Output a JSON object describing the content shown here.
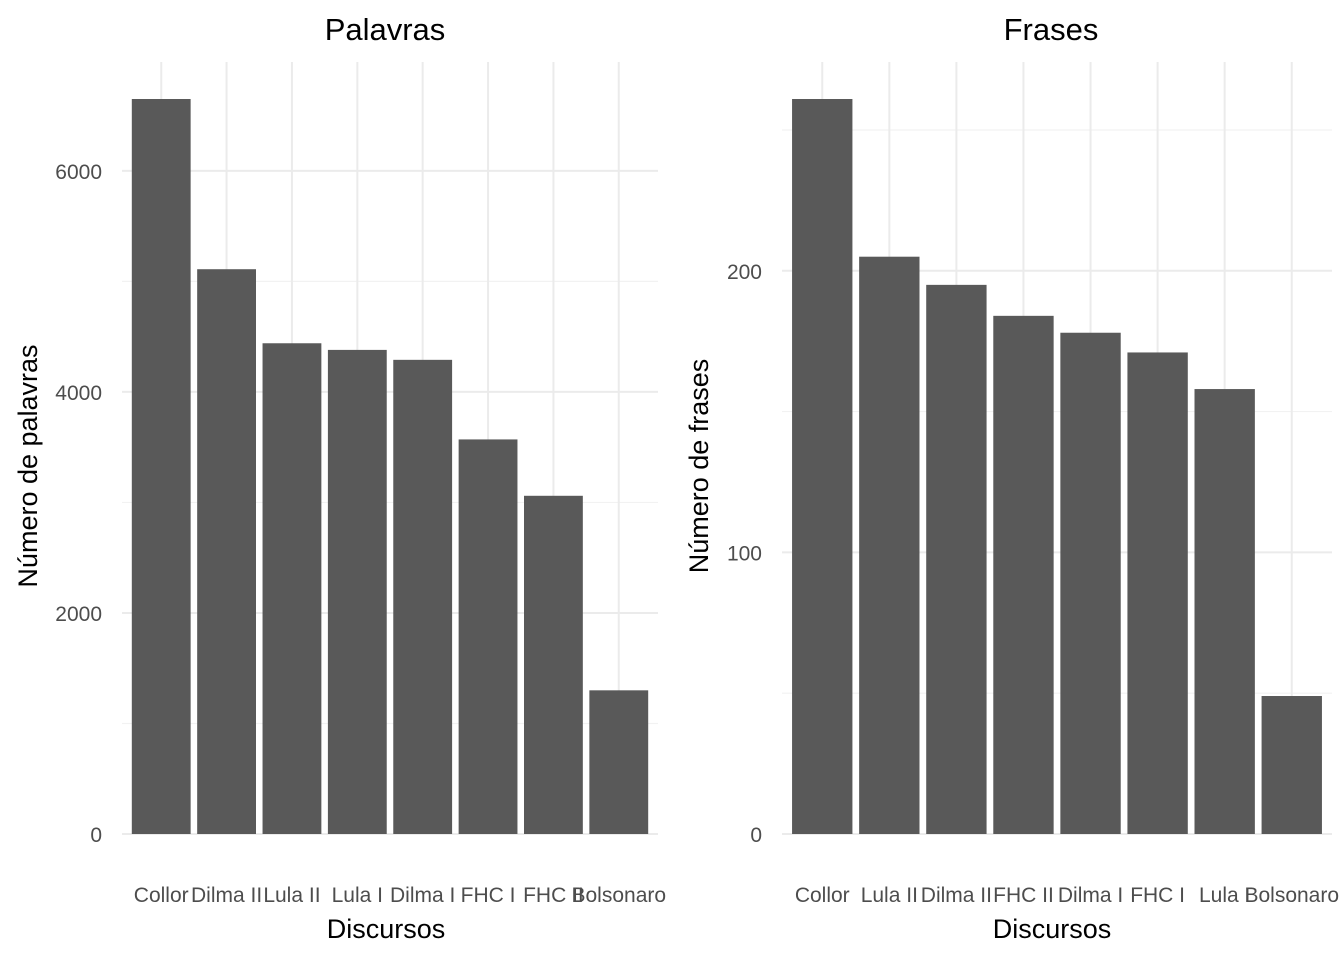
{
  "chart_data": [
    {
      "type": "bar",
      "title": "Palavras",
      "xlabel": "Discursos",
      "ylabel": "Número de palavras",
      "categories": [
        "Collor",
        "Dilma II",
        "Lula II",
        "Lula I",
        "Dilma I",
        "FHC I",
        "FHC II",
        "Bolsonaro"
      ],
      "values": [
        6650,
        5110,
        4440,
        4380,
        4290,
        3570,
        3060,
        1300
      ],
      "ylim": [
        0,
        6650
      ],
      "y_ticks": [
        0,
        2000,
        4000,
        6000
      ],
      "y_tick_labels": [
        "0",
        "2000",
        "4000",
        "6000"
      ],
      "grid": true,
      "bar_color": "#595959"
    },
    {
      "type": "bar",
      "title": "Frases",
      "xlabel": "Discursos",
      "ylabel": "Número de frases",
      "categories": [
        "Collor",
        "Lula II",
        "Dilma II",
        "FHC II",
        "Dilma I",
        "FHC I",
        "Lula I",
        "Bolsonaro"
      ],
      "values": [
        261,
        205,
        195,
        184,
        178,
        171,
        158,
        49
      ],
      "ylim": [
        0,
        261
      ],
      "y_ticks": [
        0,
        100,
        200
      ],
      "y_tick_labels": [
        "0",
        "100",
        "200"
      ],
      "grid": true,
      "bar_color": "#595959"
    }
  ]
}
